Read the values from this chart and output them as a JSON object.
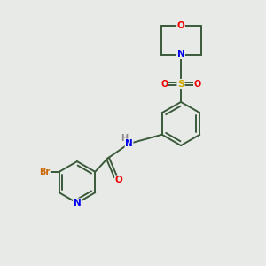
{
  "background_color": "#e8eae8",
  "atom_colors": {
    "C": "#3a5a3a",
    "N": "#0000ee",
    "O": "#ee0000",
    "S": "#ccaa00",
    "Br": "#cc6600",
    "H": "#888888"
  },
  "bond_color": "#3a5a3a",
  "line_width": 1.4,
  "figsize": [
    3.0,
    3.0
  ],
  "dpi": 100
}
